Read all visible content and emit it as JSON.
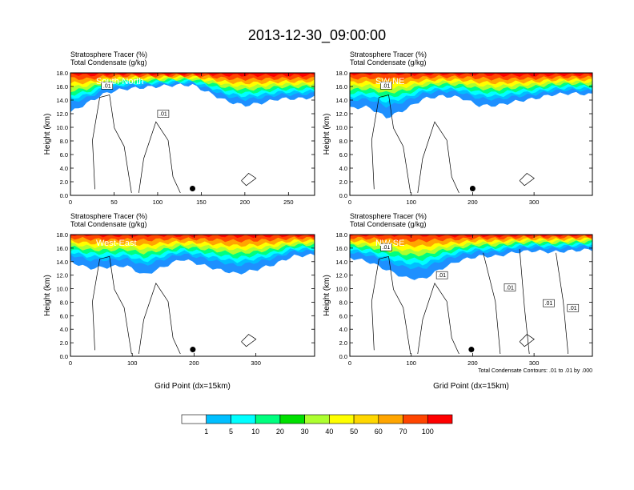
{
  "main_title": "2013-12-30_09:00:00",
  "chart_data": [
    {
      "type": "heatmap",
      "title_lines": [
        "Stratosphere Tracer   (%)",
        "Total Condensate   (g/kg)"
      ],
      "panel_label": "South-North",
      "ylabel": "Height (km)",
      "xlabel": "",
      "xlim": [
        0,
        280
      ],
      "ylim": [
        0,
        18
      ],
      "xticks": [
        0,
        50,
        100,
        150,
        200,
        250
      ],
      "yticks": [
        0,
        2,
        4,
        6,
        8,
        10,
        12,
        14,
        16,
        18
      ],
      "marker_x": 140,
      "contour_labels": [
        ".01",
        ".01"
      ],
      "tracer_profile": {
        "x": [
          0,
          20,
          40,
          60,
          80,
          100,
          120,
          140,
          160,
          180,
          200,
          220,
          240,
          260,
          280
        ],
        "base": [
          14.0,
          14.2,
          15.6,
          16.0,
          16.2,
          16.2,
          16.4,
          16.4,
          15.6,
          14.4,
          14.0,
          14.2,
          14.6,
          14.6,
          14.8
        ],
        "blue_base": [
          12.2,
          13.6,
          15.0,
          15.6,
          15.8,
          16.0,
          16.2,
          16.2,
          15.0,
          13.8,
          13.2,
          13.6,
          14.2,
          14.2,
          14.4
        ]
      }
    },
    {
      "type": "heatmap",
      "title_lines": [
        "Stratosphere Tracer   (%)",
        "Total Condensate   (g/kg)"
      ],
      "panel_label": "SW-NE",
      "ylabel": "Height (km)",
      "xlabel": "",
      "xlim": [
        0,
        395
      ],
      "ylim": [
        0,
        18
      ],
      "xticks": [
        0,
        100,
        200,
        300
      ],
      "yticks": [
        0,
        2,
        4,
        6,
        8,
        10,
        12,
        14,
        16,
        18
      ],
      "marker_x": 200,
      "contour_labels": [
        ".01"
      ],
      "tracer_profile": {
        "x": [
          0,
          30,
          60,
          90,
          120,
          150,
          180,
          210,
          240,
          270,
          300,
          330,
          360,
          395
        ],
        "base": [
          14.2,
          14.4,
          13.6,
          14.0,
          15.0,
          15.4,
          15.2,
          14.4,
          14.0,
          14.4,
          14.6,
          15.2,
          15.4,
          15.2
        ],
        "blue_base": [
          12.8,
          13.0,
          11.4,
          12.6,
          14.2,
          14.6,
          14.4,
          13.2,
          13.2,
          13.8,
          14.2,
          14.8,
          15.0,
          14.8
        ]
      }
    },
    {
      "type": "heatmap",
      "title_lines": [
        "Stratosphere Tracer   (%)",
        "Total Condensate   (g/kg)"
      ],
      "panel_label": "West-East",
      "ylabel": "Height (km)",
      "xlabel": "Grid Point (dx=15km)",
      "xlim": [
        0,
        395
      ],
      "ylim": [
        0,
        18
      ],
      "xticks": [
        0,
        100,
        200,
        300
      ],
      "yticks": [
        0,
        2,
        4,
        6,
        8,
        10,
        12,
        14,
        16,
        18
      ],
      "marker_x": 198,
      "contour_labels": [],
      "tracer_profile": {
        "x": [
          0,
          30,
          60,
          90,
          120,
          150,
          180,
          210,
          240,
          270,
          300,
          330,
          360,
          395
        ],
        "base": [
          15.4,
          14.6,
          14.4,
          14.6,
          13.8,
          14.6,
          15.2,
          14.8,
          14.2,
          13.6,
          14.0,
          14.6,
          15.6,
          15.6
        ],
        "blue_base": [
          14.0,
          13.0,
          13.2,
          13.4,
          12.0,
          13.2,
          14.4,
          13.6,
          12.8,
          12.2,
          12.8,
          13.6,
          14.8,
          15.0
        ]
      }
    },
    {
      "type": "heatmap",
      "title_lines": [
        "Stratosphere Tracer   (%)",
        "Total Condensate   (g/kg)"
      ],
      "panel_label": "NW-SE",
      "ylabel": "Height (km)",
      "xlabel": "Grid Point (dx=15km)",
      "xlim": [
        0,
        395
      ],
      "ylim": [
        0,
        18
      ],
      "xticks": [
        0,
        100,
        200,
        300
      ],
      "yticks": [
        0,
        2,
        4,
        6,
        8,
        10,
        12,
        14,
        16,
        18
      ],
      "marker_x": 198,
      "contour_labels": [
        ".01",
        ".01",
        ".01",
        ".01",
        ".01"
      ],
      "contour_note": "Total Condensate Contours: .01 to .01 by .000",
      "tracer_profile": {
        "x": [
          0,
          30,
          60,
          90,
          120,
          150,
          180,
          210,
          240,
          270,
          300,
          330,
          360,
          395
        ],
        "base": [
          15.6,
          15.2,
          14.4,
          13.6,
          13.4,
          14.4,
          15.0,
          15.6,
          15.4,
          16.0,
          16.2,
          16.0,
          16.2,
          16.4
        ],
        "blue_base": [
          14.6,
          14.0,
          12.8,
          11.6,
          11.4,
          13.0,
          14.2,
          14.8,
          14.8,
          15.4,
          15.6,
          15.4,
          15.6,
          15.8
        ]
      }
    }
  ],
  "colorbar": {
    "boundaries": [
      "1",
      "5",
      "10",
      "20",
      "30",
      "40",
      "50",
      "60",
      "70",
      "100"
    ],
    "colors": [
      "#ffffff",
      "#1e90ff",
      "#00bfff",
      "#00ffff",
      "#00ff7f",
      "#00e000",
      "#adff2f",
      "#ffff00",
      "#ffd700",
      "#ffa500",
      "#ff4500",
      "#ff0000"
    ]
  }
}
